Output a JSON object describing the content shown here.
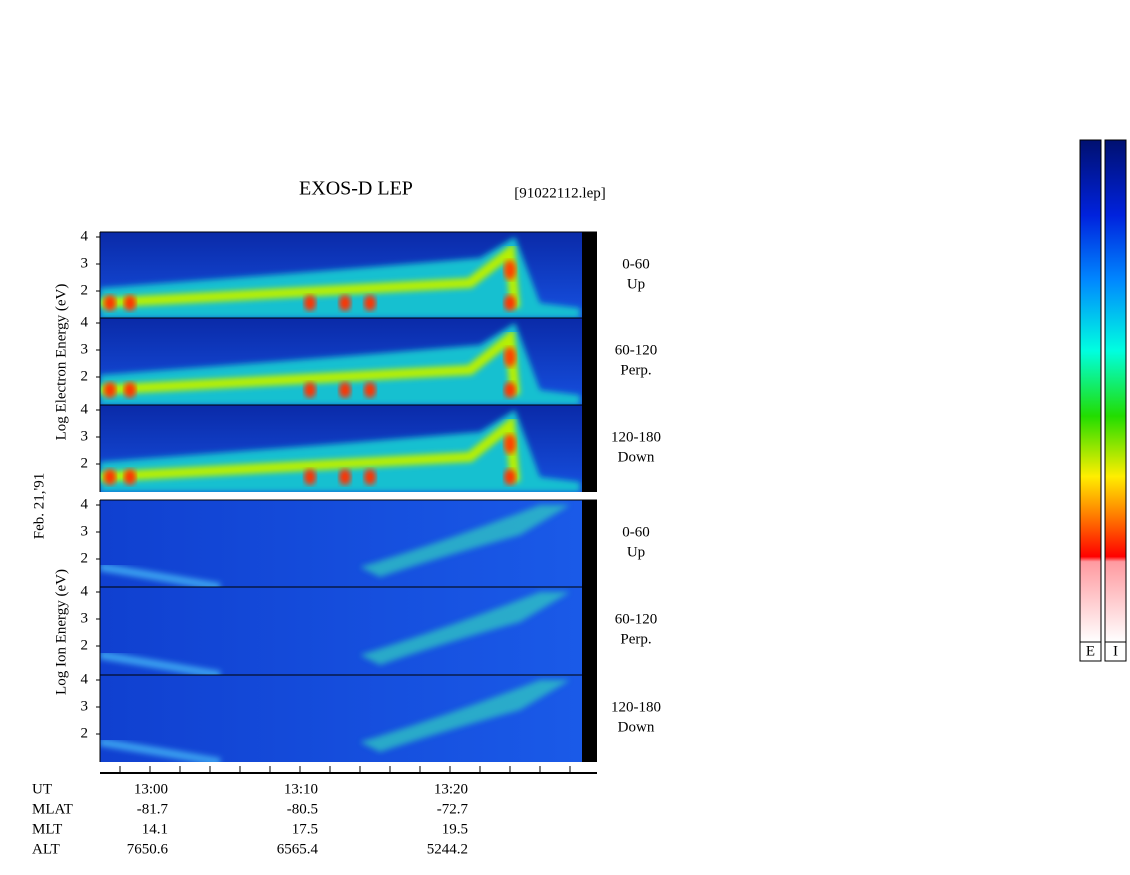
{
  "header": {
    "title": "EXOS-D LEP",
    "file": "[91022112.lep]"
  },
  "axis_labels": {
    "electron": "Log  Electron  Energy (eV)",
    "date": "Feb. 21,'91",
    "ion": "Log  Ion  Energy (eV)"
  },
  "panels": [
    {
      "angle": "0-60",
      "direction": "Up",
      "yticks": [
        "4",
        "3",
        "2"
      ]
    },
    {
      "angle": "60-120",
      "direction": "Perp.",
      "yticks": [
        "4",
        "3",
        "2"
      ]
    },
    {
      "angle": "120-180",
      "direction": "Down",
      "yticks": [
        "4",
        "3",
        "2"
      ]
    },
    {
      "angle": "0-60",
      "direction": "Up",
      "yticks": [
        "4",
        "3",
        "2"
      ]
    },
    {
      "angle": "60-120",
      "direction": "Perp.",
      "yticks": [
        "4",
        "3",
        "2"
      ]
    },
    {
      "angle": "120-180",
      "direction": "Down",
      "yticks": [
        "4",
        "3",
        "2"
      ]
    }
  ],
  "ephemeris": {
    "rows": [
      [
        "UT",
        "13:00",
        "13:10",
        "13:20"
      ],
      [
        "MLAT",
        "-81.7",
        "-80.5",
        "-72.7"
      ],
      [
        "MLT",
        "14.1",
        "17.5",
        "19.5"
      ],
      [
        "ALT",
        "7650.6",
        "6565.4",
        "5244.2"
      ]
    ]
  },
  "colorbars": [
    "E",
    "I"
  ]
}
